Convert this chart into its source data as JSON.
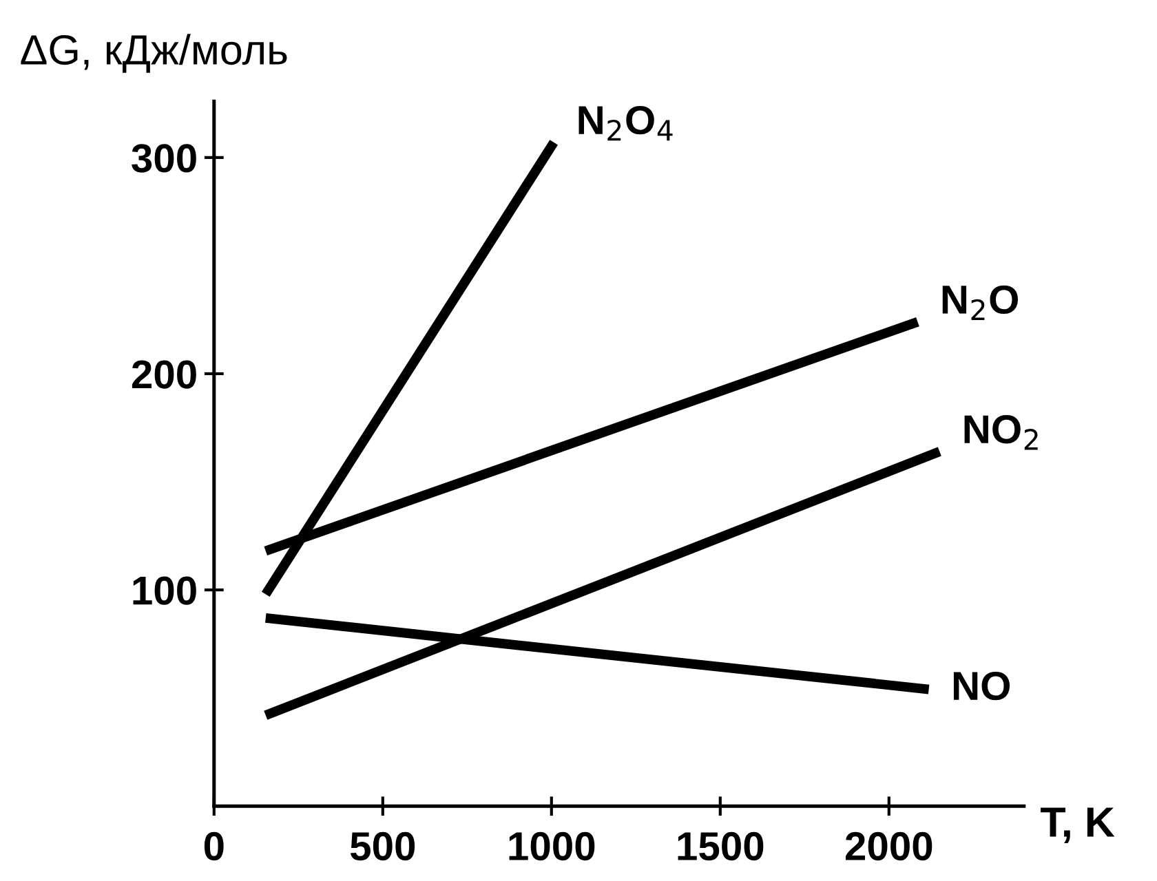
{
  "chart_data": {
    "type": "line",
    "ylabel": "ΔG, кДж/моль",
    "xlabel": "T, K",
    "xlim": [
      0,
      2400
    ],
    "ylim": [
      0,
      326
    ],
    "xticks": [
      0,
      500,
      1000,
      1500,
      2000
    ],
    "yticks": [
      100,
      200,
      300
    ],
    "grid": false,
    "legend": false,
    "marker": "none",
    "line_style": "solid",
    "series": [
      {
        "name": "N$_{2}$O$_{4}$",
        "color": "#000000",
        "x": [
          153,
          1007
        ],
        "values": [
          98,
          307
        ]
      },
      {
        "name": "N$_{2}$O",
        "color": "#000000",
        "x": [
          153,
          2085
        ],
        "values": [
          118,
          224
        ]
      },
      {
        "name": "NO$_{2}$",
        "color": "#000000",
        "x": [
          153,
          2150
        ],
        "values": [
          42,
          164
        ]
      },
      {
        "name": "NO",
        "color": "#000000",
        "x": [
          153,
          2118
        ],
        "values": [
          87,
          54
        ]
      }
    ]
  }
}
